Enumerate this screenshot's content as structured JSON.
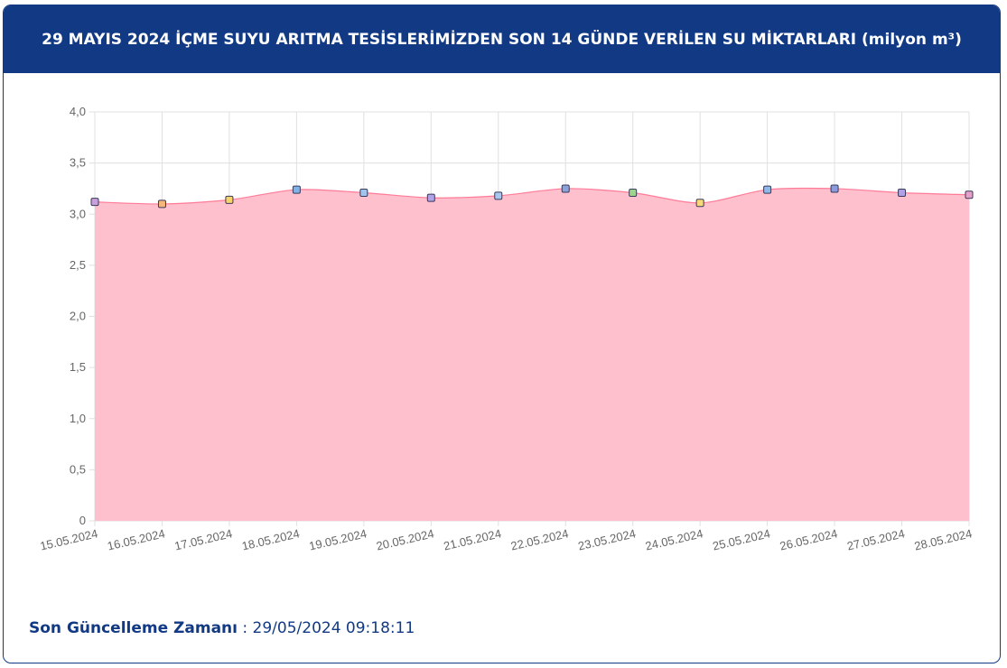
{
  "header": {
    "title": "29 MAYIS 2024 İÇME SUYU ARITMA TESİSLERİMİZDEN SON 14 GÜNDE VERİLEN SU MİKTARLARI (milyon m³)"
  },
  "footer": {
    "label": "Son Güncelleme Zamanı",
    "separator": " : ",
    "value": "29/05/2024 09:18:11"
  },
  "colors": {
    "header_bg": "#123a84",
    "area_fill": "#ffc0cd",
    "line": "#ff6384",
    "grid": "#e0e0e0"
  },
  "chart_data": {
    "type": "area",
    "title": "",
    "xlabel": "",
    "ylabel": "",
    "ylim": [
      0,
      4
    ],
    "y_ticks": [
      "0",
      "0,5",
      "1,0",
      "1,5",
      "2,0",
      "2,5",
      "3,0",
      "3,5",
      "4,0"
    ],
    "grid": true,
    "categories": [
      "15.05.2024",
      "16.05.2024",
      "17.05.2024",
      "18.05.2024",
      "19.05.2024",
      "20.05.2024",
      "21.05.2024",
      "22.05.2024",
      "23.05.2024",
      "24.05.2024",
      "25.05.2024",
      "26.05.2024",
      "27.05.2024",
      "28.05.2024"
    ],
    "values": [
      3.12,
      3.1,
      3.14,
      3.24,
      3.21,
      3.16,
      3.18,
      3.25,
      3.21,
      3.11,
      3.24,
      3.25,
      3.21,
      3.19
    ],
    "point_colors": [
      "#c9a0dc",
      "#f5b87a",
      "#f7d46b",
      "#7fb3e8",
      "#9ec5f0",
      "#b0a3e8",
      "#a8c8f0",
      "#8aa3d8",
      "#9cd68c",
      "#f7d87a",
      "#8fb7e8",
      "#8a9be0",
      "#b0a0e8",
      "#e8a0c8"
    ]
  }
}
